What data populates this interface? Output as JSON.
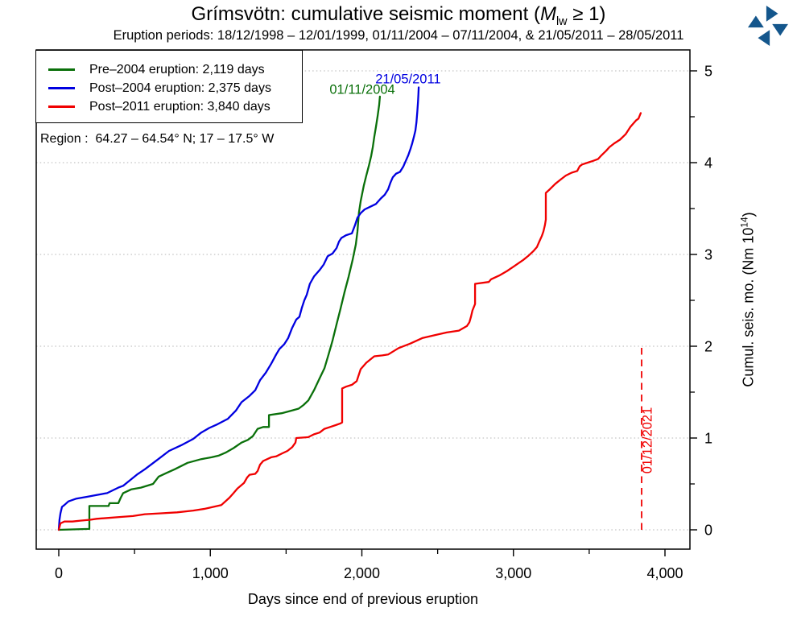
{
  "header": {
    "title_prefix": "Grímsvötn: cumulative seismic moment (",
    "title_var": "M",
    "title_var_sub": "lw",
    "title_suffix": " ≥ 1)",
    "subtitle": "Eruption periods: 18/12/1998 – 12/01/1999, 01/11/2004 – 07/11/2004, & 21/05/2011 – 28/05/2011"
  },
  "legend": {
    "entries": [
      {
        "label": "Pre–2004 eruption: 2,119 days",
        "color": "#0A700A"
      },
      {
        "label": "Post–2004 eruption: 2,375 days",
        "color": "#0000E0"
      },
      {
        "label": "Post–2011 eruption: 3,840 days",
        "color": "#F00000"
      }
    ]
  },
  "region_label": "Region :  64.27 – 64.54° N; 17 – 17.5° W",
  "axes": {
    "x": {
      "label": "Days since end of previous eruption",
      "ticks": [
        {
          "v": 0,
          "label": "0"
        },
        {
          "v": 1000,
          "label": "1,000"
        },
        {
          "v": 2000,
          "label": "2,000"
        },
        {
          "v": 3000,
          "label": "3,000"
        },
        {
          "v": 4000,
          "label": "4,000"
        }
      ],
      "minor": [
        500,
        1500,
        2500,
        3500
      ]
    },
    "y": {
      "label_prefix": "Cumul. seis. mo. (Nm 10",
      "label_sup": "14",
      "label_suffix": ")",
      "ticks": [
        0,
        1,
        2,
        3,
        4,
        5
      ],
      "minor": [
        0.5,
        1.5,
        2.5,
        3.5,
        4.5
      ]
    }
  },
  "chart_data": {
    "type": "line",
    "title": "Grímsvötn: cumulative seismic moment (Mlw ≥ 1)",
    "xlabel": "Days since end of previous eruption",
    "ylabel": "Cumul. seis. mo. (Nm 10^14)",
    "xlim": [
      -150,
      4165
    ],
    "ylim": [
      -0.21,
      5.23
    ],
    "grid": "horizontal-dotted",
    "legend_position": "top-left",
    "series": [
      {
        "name": "Pre-2004 eruption",
        "duration_days": 2119,
        "color": "#0A700A",
        "points": [
          [
            0,
            0
          ],
          [
            197,
            0.01
          ],
          [
            202,
            0.01
          ],
          [
            202,
            0.26
          ],
          [
            329,
            0.26
          ],
          [
            335,
            0.29
          ],
          [
            393,
            0.29
          ],
          [
            409,
            0.35
          ],
          [
            425,
            0.4
          ],
          [
            478,
            0.44
          ],
          [
            542,
            0.46
          ],
          [
            622,
            0.5
          ],
          [
            659,
            0.58
          ],
          [
            712,
            0.62
          ],
          [
            765,
            0.66
          ],
          [
            850,
            0.73
          ],
          [
            940,
            0.77
          ],
          [
            1009,
            0.79
          ],
          [
            1057,
            0.81
          ],
          [
            1100,
            0.84
          ],
          [
            1153,
            0.89
          ],
          [
            1206,
            0.95
          ],
          [
            1248,
            0.98
          ],
          [
            1280,
            1.02
          ],
          [
            1312,
            1.1
          ],
          [
            1349,
            1.12
          ],
          [
            1387,
            1.12
          ],
          [
            1387,
            1.25
          ],
          [
            1471,
            1.27
          ],
          [
            1540,
            1.3
          ],
          [
            1583,
            1.32
          ],
          [
            1615,
            1.36
          ],
          [
            1647,
            1.41
          ],
          [
            1684,
            1.52
          ],
          [
            1721,
            1.65
          ],
          [
            1753,
            1.76
          ],
          [
            1780,
            1.91
          ],
          [
            1806,
            2.06
          ],
          [
            1833,
            2.24
          ],
          [
            1859,
            2.41
          ],
          [
            1886,
            2.59
          ],
          [
            1913,
            2.76
          ],
          [
            1939,
            2.94
          ],
          [
            1960,
            3.11
          ],
          [
            1971,
            3.25
          ],
          [
            1981,
            3.46
          ],
          [
            1992,
            3.58
          ],
          [
            2013,
            3.75
          ],
          [
            2029,
            3.86
          ],
          [
            2045,
            3.96
          ],
          [
            2061,
            4.07
          ],
          [
            2072,
            4.17
          ],
          [
            2082,
            4.28
          ],
          [
            2093,
            4.39
          ],
          [
            2104,
            4.51
          ],
          [
            2114,
            4.63
          ],
          [
            2119,
            4.72
          ]
        ]
      },
      {
        "name": "Post-2004 eruption",
        "duration_days": 2375,
        "color": "#0000E0",
        "points": [
          [
            0,
            0
          ],
          [
            5,
            0.11
          ],
          [
            11,
            0.18
          ],
          [
            21,
            0.25
          ],
          [
            37,
            0.27
          ],
          [
            64,
            0.31
          ],
          [
            117,
            0.34
          ],
          [
            186,
            0.36
          ],
          [
            250,
            0.38
          ],
          [
            319,
            0.4
          ],
          [
            356,
            0.43
          ],
          [
            393,
            0.46
          ],
          [
            425,
            0.48
          ],
          [
            462,
            0.53
          ],
          [
            515,
            0.6
          ],
          [
            568,
            0.66
          ],
          [
            648,
            0.76
          ],
          [
            728,
            0.86
          ],
          [
            807,
            0.92
          ],
          [
            887,
            0.99
          ],
          [
            940,
            1.06
          ],
          [
            993,
            1.11
          ],
          [
            1047,
            1.15
          ],
          [
            1116,
            1.21
          ],
          [
            1169,
            1.3
          ],
          [
            1206,
            1.39
          ],
          [
            1259,
            1.46
          ],
          [
            1296,
            1.52
          ],
          [
            1328,
            1.63
          ],
          [
            1365,
            1.71
          ],
          [
            1402,
            1.81
          ],
          [
            1434,
            1.91
          ],
          [
            1456,
            1.97
          ],
          [
            1487,
            2.02
          ],
          [
            1514,
            2.09
          ],
          [
            1540,
            2.2
          ],
          [
            1567,
            2.29
          ],
          [
            1588,
            2.32
          ],
          [
            1604,
            2.42
          ],
          [
            1620,
            2.5
          ],
          [
            1636,
            2.56
          ],
          [
            1657,
            2.68
          ],
          [
            1684,
            2.76
          ],
          [
            1721,
            2.83
          ],
          [
            1748,
            2.89
          ],
          [
            1774,
            2.98
          ],
          [
            1806,
            3.01
          ],
          [
            1833,
            3.07
          ],
          [
            1849,
            3.14
          ],
          [
            1865,
            3.18
          ],
          [
            1896,
            3.21
          ],
          [
            1934,
            3.23
          ],
          [
            1955,
            3.32
          ],
          [
            1971,
            3.4
          ],
          [
            1992,
            3.45
          ],
          [
            2018,
            3.49
          ],
          [
            2056,
            3.52
          ],
          [
            2093,
            3.55
          ],
          [
            2125,
            3.61
          ],
          [
            2151,
            3.65
          ],
          [
            2173,
            3.71
          ],
          [
            2188,
            3.78
          ],
          [
            2204,
            3.84
          ],
          [
            2226,
            3.88
          ],
          [
            2252,
            3.9
          ],
          [
            2274,
            3.96
          ],
          [
            2290,
            4.02
          ],
          [
            2306,
            4.08
          ],
          [
            2321,
            4.15
          ],
          [
            2332,
            4.21
          ],
          [
            2343,
            4.28
          ],
          [
            2353,
            4.35
          ],
          [
            2360,
            4.44
          ],
          [
            2366,
            4.56
          ],
          [
            2370,
            4.66
          ],
          [
            2373,
            4.74
          ],
          [
            2375,
            4.82
          ]
        ]
      },
      {
        "name": "Post-2011 eruption",
        "duration_days": 3840,
        "color": "#F00000",
        "points": [
          [
            0,
            0
          ],
          [
            11,
            0.07
          ],
          [
            37,
            0.09
          ],
          [
            90,
            0.09
          ],
          [
            143,
            0.1
          ],
          [
            207,
            0.11
          ],
          [
            250,
            0.12
          ],
          [
            329,
            0.13
          ],
          [
            409,
            0.14
          ],
          [
            489,
            0.15
          ],
          [
            568,
            0.17
          ],
          [
            675,
            0.18
          ],
          [
            781,
            0.19
          ],
          [
            887,
            0.21
          ],
          [
            967,
            0.23
          ],
          [
            1020,
            0.25
          ],
          [
            1073,
            0.27
          ],
          [
            1126,
            0.35
          ],
          [
            1153,
            0.4
          ],
          [
            1179,
            0.45
          ],
          [
            1222,
            0.51
          ],
          [
            1243,
            0.57
          ],
          [
            1259,
            0.6
          ],
          [
            1296,
            0.61
          ],
          [
            1312,
            0.64
          ],
          [
            1328,
            0.71
          ],
          [
            1349,
            0.75
          ],
          [
            1402,
            0.79
          ],
          [
            1434,
            0.8
          ],
          [
            1471,
            0.83
          ],
          [
            1509,
            0.86
          ],
          [
            1540,
            0.9
          ],
          [
            1562,
            0.95
          ],
          [
            1567,
            1.0
          ],
          [
            1646,
            1.01
          ],
          [
            1684,
            1.04
          ],
          [
            1721,
            1.06
          ],
          [
            1753,
            1.1
          ],
          [
            1790,
            1.12
          ],
          [
            1827,
            1.14
          ],
          [
            1859,
            1.16
          ],
          [
            1870,
            1.17
          ],
          [
            1870,
            1.54
          ],
          [
            1896,
            1.56
          ],
          [
            1934,
            1.58
          ],
          [
            1966,
            1.62
          ],
          [
            1992,
            1.75
          ],
          [
            2029,
            1.82
          ],
          [
            2082,
            1.89
          ],
          [
            2135,
            1.9
          ],
          [
            2173,
            1.91
          ],
          [
            2242,
            1.98
          ],
          [
            2321,
            2.03
          ],
          [
            2401,
            2.09
          ],
          [
            2481,
            2.12
          ],
          [
            2560,
            2.15
          ],
          [
            2640,
            2.17
          ],
          [
            2693,
            2.22
          ],
          [
            2709,
            2.26
          ],
          [
            2720,
            2.32
          ],
          [
            2730,
            2.39
          ],
          [
            2747,
            2.46
          ],
          [
            2747,
            2.68
          ],
          [
            2837,
            2.7
          ],
          [
            2853,
            2.73
          ],
          [
            2906,
            2.77
          ],
          [
            2959,
            2.82
          ],
          [
            3012,
            2.88
          ],
          [
            3065,
            2.94
          ],
          [
            3102,
            2.99
          ],
          [
            3134,
            3.04
          ],
          [
            3155,
            3.08
          ],
          [
            3171,
            3.14
          ],
          [
            3187,
            3.2
          ],
          [
            3198,
            3.25
          ],
          [
            3208,
            3.32
          ],
          [
            3214,
            3.38
          ],
          [
            3214,
            3.67
          ],
          [
            3240,
            3.71
          ],
          [
            3277,
            3.77
          ],
          [
            3315,
            3.82
          ],
          [
            3346,
            3.86
          ],
          [
            3384,
            3.89
          ],
          [
            3421,
            3.91
          ],
          [
            3437,
            3.96
          ],
          [
            3453,
            3.98
          ],
          [
            3490,
            4.0
          ],
          [
            3527,
            4.02
          ],
          [
            3559,
            4.04
          ],
          [
            3581,
            4.08
          ],
          [
            3612,
            4.13
          ],
          [
            3634,
            4.17
          ],
          [
            3665,
            4.21
          ],
          [
            3703,
            4.25
          ],
          [
            3740,
            4.31
          ],
          [
            3772,
            4.39
          ],
          [
            3809,
            4.46
          ],
          [
            3825,
            4.48
          ],
          [
            3840,
            4.54
          ]
        ]
      }
    ],
    "marker": {
      "x": 3846,
      "y_from": 0,
      "y_to": 2.0,
      "style": "dashed",
      "color": "#F00000"
    },
    "annotations": [
      {
        "text": "01/11/2004",
        "color": "#0A700A",
        "x": 2003,
        "y": 4.79,
        "rotate": 0
      },
      {
        "text": "21/05/2011",
        "color": "#0000E0",
        "x": 2305,
        "y": 4.9,
        "rotate": 0
      },
      {
        "text": "01/12/2021",
        "color": "#F00000",
        "x": 3890,
        "y": 0.97,
        "rotate": -90
      }
    ]
  },
  "logo": {
    "name": "met-office-pinwheel",
    "color": "#14568C"
  }
}
